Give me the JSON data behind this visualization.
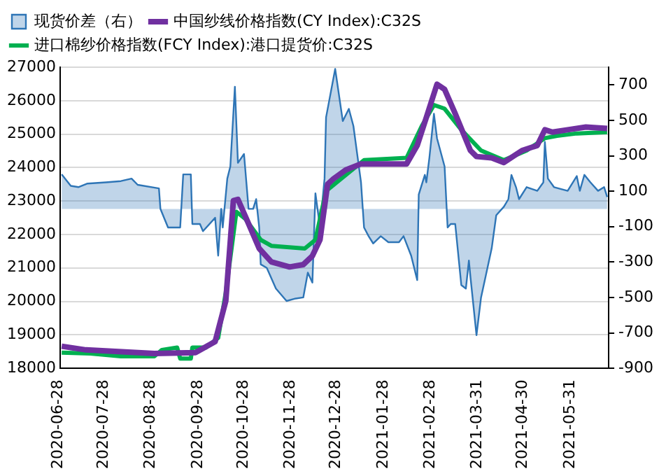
{
  "chart_data": {
    "type": "line",
    "legend": "top left",
    "grid": "y",
    "marker": "none",
    "xlim": [
      "2020-06-28",
      "2021-06-24"
    ],
    "xticks": [
      "2020-06-28",
      "2020-07-28",
      "2020-08-28",
      "2020-09-28",
      "2020-10-28",
      "2020-11-28",
      "2020-12-28",
      "2021-01-28",
      "2021-02-28",
      "2021-03-31",
      "2021-04-30",
      "2021-05-31"
    ],
    "ylim": [
      18000,
      27000
    ],
    "yticks": [
      18000,
      19000,
      20000,
      21000,
      22000,
      23000,
      24000,
      25000,
      26000,
      27000
    ],
    "y2lim": [
      -900,
      800
    ],
    "y2ticks": [
      -900,
      -700,
      -500,
      -300,
      -100,
      100,
      300,
      500,
      700
    ],
    "series": [
      {
        "name": "现货价差（右）",
        "type": "area",
        "axis": "y2",
        "color": "#2e75b6",
        "x": [
          "2020-06-29",
          "2020-07-05",
          "2020-07-10",
          "2020-07-16",
          "2020-07-28",
          "2020-08-07",
          "2020-08-14",
          "2020-08-18",
          "2020-09-01",
          "2020-09-02",
          "2020-09-07",
          "2020-09-15",
          "2020-09-17",
          "2020-09-22",
          "2020-09-23",
          "2020-09-28",
          "2020-09-30",
          "2020-10-08",
          "2020-10-10",
          "2020-10-12",
          "2020-10-13",
          "2020-10-16",
          "2020-10-18",
          "2020-10-21",
          "2020-10-23",
          "2020-10-27",
          "2020-10-30",
          "2020-11-02",
          "2020-11-04",
          "2020-11-06",
          "2020-11-07",
          "2020-11-11",
          "2020-11-17",
          "2020-11-24",
          "2020-11-30",
          "2020-12-05",
          "2020-12-08",
          "2020-12-11",
          "2020-12-13",
          "2020-12-16",
          "2020-12-19",
          "2020-12-20",
          "2020-12-26",
          "2020-12-31",
          "2021-01-04",
          "2021-01-07",
          "2021-01-12",
          "2021-01-14",
          "2021-01-17",
          "2021-01-20",
          "2021-01-25",
          "2021-01-30",
          "2021-02-06",
          "2021-02-09",
          "2021-02-14",
          "2021-02-18",
          "2021-02-19",
          "2021-02-23",
          "2021-02-24",
          "2021-02-26",
          "2021-03-01",
          "2021-03-03",
          "2021-03-08",
          "2021-03-10",
          "2021-03-12",
          "2021-03-15",
          "2021-03-19",
          "2021-03-22",
          "2021-03-24",
          "2021-03-25",
          "2021-03-29",
          "2021-04-01",
          "2021-04-04",
          "2021-04-08",
          "2021-04-11",
          "2021-04-16",
          "2021-04-19",
          "2021-04-21",
          "2021-04-24",
          "2021-04-26",
          "2021-05-01",
          "2021-05-08",
          "2021-05-12",
          "2021-05-13",
          "2021-05-15",
          "2021-05-19",
          "2021-05-28",
          "2021-06-03",
          "2021-06-05",
          "2021-06-08",
          "2021-06-12",
          "2021-06-17",
          "2021-06-21",
          "2021-06-23"
        ],
        "values": [
          195,
          130,
          123,
          143,
          150,
          157,
          171,
          136,
          116,
          0,
          -105,
          -105,
          195,
          195,
          -85,
          -85,
          -126,
          -50,
          -264,
          0,
          -105,
          171,
          240,
          690,
          260,
          310,
          0,
          0,
          55,
          -105,
          -313,
          -333,
          -450,
          -520,
          -506,
          -500,
          -360,
          -416,
          88,
          -105,
          171,
          517,
          790,
          496,
          565,
          468,
          150,
          -105,
          -154,
          -195,
          -154,
          -188,
          -188,
          -154,
          -264,
          -402,
          81,
          192,
          150,
          289,
          537,
          399,
          240,
          -105,
          -85,
          -85,
          -430,
          -450,
          -292,
          -382,
          -713,
          -500,
          -382,
          -223,
          -36,
          12,
          55,
          192,
          123,
          55,
          123,
          102,
          150,
          378,
          171,
          123,
          102,
          185,
          102,
          192,
          150,
          102,
          123,
          67
        ]
      },
      {
        "name": "中国纱线价格指数(CY Index):C32S",
        "type": "line",
        "color": "#7030a0",
        "x": [
          "2020-06-29",
          "2020-07-15",
          "2020-08-29",
          "2020-09-25",
          "2020-10-08",
          "2020-10-15",
          "2020-10-20",
          "2020-10-23",
          "2020-10-30",
          "2020-11-06",
          "2020-11-14",
          "2020-11-26",
          "2020-12-05",
          "2020-12-11",
          "2020-12-16",
          "2020-12-21",
          "2020-12-25",
          "2021-01-02",
          "2021-01-12",
          "2021-02-11",
          "2021-02-18",
          "2021-02-24",
          "2021-03-03",
          "2021-03-08",
          "2021-03-15",
          "2021-03-25",
          "2021-03-29",
          "2021-04-08",
          "2021-04-16",
          "2021-04-28",
          "2021-05-08",
          "2021-05-13",
          "2021-05-18",
          "2021-05-28",
          "2021-06-09",
          "2021-06-23"
        ],
        "values": [
          18660,
          18550,
          18440,
          18470,
          18800,
          20010,
          23010,
          23050,
          22320,
          21580,
          21180,
          21030,
          21100,
          21360,
          21840,
          23500,
          23670,
          23930,
          24110,
          24110,
          24660,
          25500,
          26490,
          26340,
          25610,
          24510,
          24330,
          24290,
          24150,
          24510,
          24660,
          25130,
          25060,
          25130,
          25210,
          25170
        ]
      },
      {
        "name": "进口棉纱价格指数(FCY Index):港口提货价:C32S",
        "type": "line",
        "color": "#00b050",
        "x": [
          "2020-06-29",
          "2020-07-18",
          "2020-08-07",
          "2020-08-29",
          "2020-09-03",
          "2020-09-13",
          "2020-09-15",
          "2020-09-22",
          "2020-09-23",
          "2020-10-02",
          "2020-10-10",
          "2020-10-15",
          "2020-10-22",
          "2020-10-28",
          "2020-11-07",
          "2020-11-14",
          "2020-12-06",
          "2020-12-13",
          "2020-12-17",
          "2020-12-20",
          "2021-01-02",
          "2021-01-14",
          "2021-02-11",
          "2021-02-21",
          "2021-03-01",
          "2021-03-08",
          "2021-03-19",
          "2021-04-01",
          "2021-04-16",
          "2021-05-01",
          "2021-05-13",
          "2021-05-21",
          "2021-06-03",
          "2021-06-23"
        ],
        "values": [
          18470,
          18440,
          18360,
          18360,
          18550,
          18620,
          18290,
          18290,
          18620,
          18620,
          18910,
          20270,
          22680,
          22460,
          21840,
          21660,
          21580,
          21840,
          22680,
          23300,
          23780,
          24220,
          24290,
          25240,
          25870,
          25760,
          25130,
          24510,
          24220,
          24510,
          24880,
          24950,
          25020,
          25060
        ]
      }
    ]
  }
}
